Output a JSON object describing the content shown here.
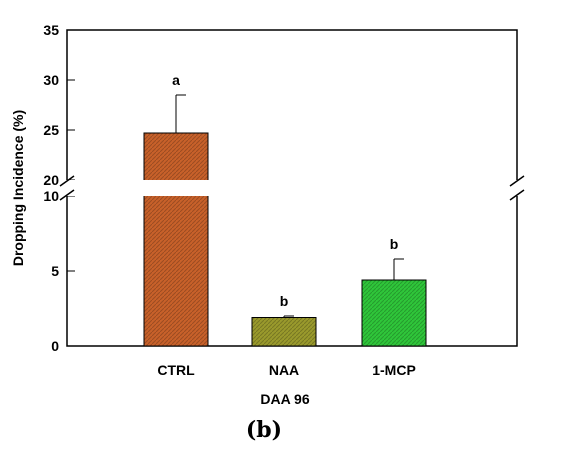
{
  "chart_data": {
    "type": "bar",
    "categories": [
      "CTRL",
      "NAA",
      "1-MCP"
    ],
    "values": [
      24.7,
      1.9,
      4.4
    ],
    "errors": [
      3.8,
      0.1,
      1.4
    ],
    "significance_letters": [
      "a",
      "b",
      "b"
    ],
    "colors": [
      "#c8612a",
      "#9a9a2c",
      "#2fc63a"
    ],
    "xlabel": "DAA 96",
    "ylabel": "Dropping Incidence (%)",
    "y_segments": [
      {
        "range": [
          0,
          10
        ],
        "ticks": [
          0,
          5,
          10
        ]
      },
      {
        "range": [
          20,
          35
        ],
        "ticks": [
          20,
          25,
          30,
          35
        ]
      }
    ],
    "axis_break": true,
    "grid": false
  },
  "panel_label": "(b)"
}
